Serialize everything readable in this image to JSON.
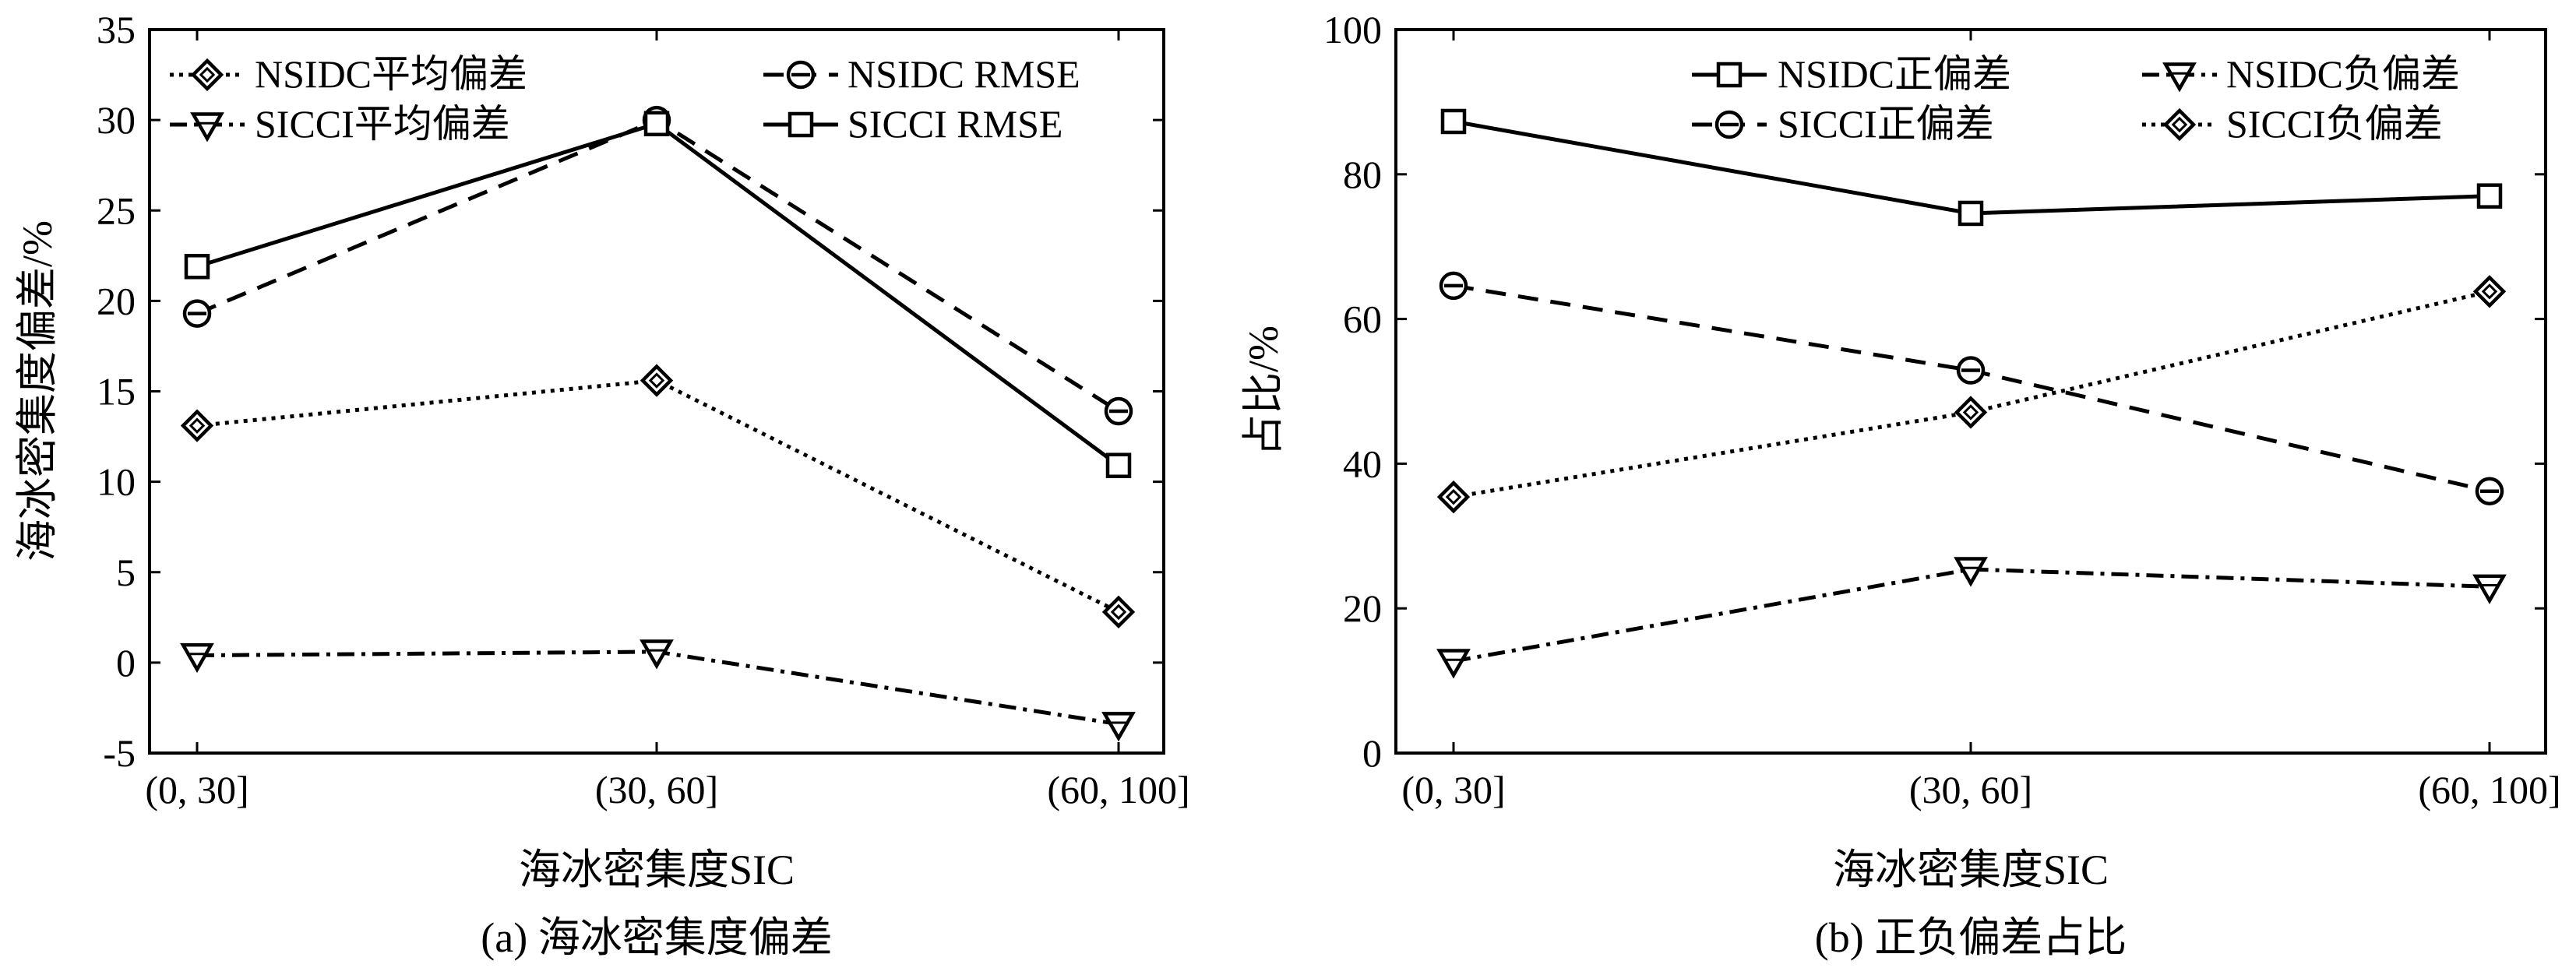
{
  "chart_data": [
    {
      "type": "line",
      "caption": "(a) 海冰密集度偏差",
      "xlabel": "海冰密集度SIC",
      "ylabel": "海冰密集度偏差/%",
      "categories": [
        "(0, 30]",
        "(30, 60]",
        "(60, 100]"
      ],
      "ylim": [
        -5,
        35
      ],
      "yticks": [
        -5,
        0,
        5,
        10,
        15,
        20,
        25,
        30,
        35
      ],
      "grid": false,
      "legend_position": "top",
      "series": [
        {
          "name": "NSIDC平均偏差",
          "values": [
            13.1,
            15.6,
            2.8
          ],
          "marker": "diamond",
          "dash": "dotted"
        },
        {
          "name": "NSIDC RMSE",
          "values": [
            19.3,
            30.0,
            13.9
          ],
          "marker": "circle",
          "dash": "dashed"
        },
        {
          "name": "SICCI平均偏差",
          "values": [
            0.4,
            0.6,
            -3.4
          ],
          "marker": "triangle-down",
          "dash": "dashdot"
        },
        {
          "name": "SICCI RMSE",
          "values": [
            21.9,
            29.8,
            10.9
          ],
          "marker": "square",
          "dash": "solid"
        }
      ]
    },
    {
      "type": "line",
      "caption": "(b) 正负偏差占比",
      "xlabel": "海冰密集度SIC",
      "ylabel": "占比/%",
      "categories": [
        "(0, 30]",
        "(30, 60]",
        "(60, 100]"
      ],
      "ylim": [
        0,
        100
      ],
      "yticks": [
        0,
        20,
        40,
        60,
        80,
        100
      ],
      "grid": false,
      "legend_position": "top",
      "series": [
        {
          "name": "NSIDC正偏差",
          "values": [
            87.3,
            74.6,
            77.0
          ],
          "marker": "square",
          "dash": "solid"
        },
        {
          "name": "NSIDC负偏差",
          "values": [
            12.7,
            25.4,
            23.0
          ],
          "marker": "triangle-down",
          "dash": "dashdot"
        },
        {
          "name": "SICCI正偏差",
          "values": [
            64.6,
            52.9,
            36.2
          ],
          "marker": "circle",
          "dash": "dashed"
        },
        {
          "name": "SICCI负偏差",
          "values": [
            35.4,
            47.1,
            63.8
          ],
          "marker": "diamond",
          "dash": "dotted"
        }
      ]
    }
  ]
}
